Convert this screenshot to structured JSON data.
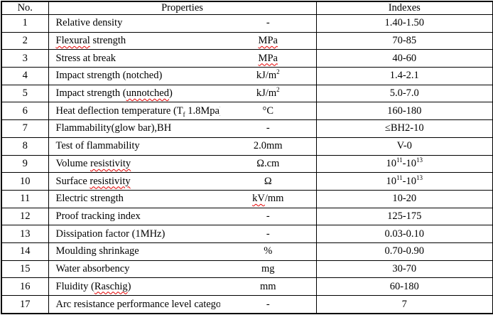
{
  "colors": {
    "border": "#000000",
    "text": "#000000",
    "spellcheck": "#e60000"
  },
  "table": {
    "headers": {
      "no": "No.",
      "properties": "Properties",
      "indexes": "Indexes"
    },
    "rows": [
      {
        "no": "1",
        "property": "Relative density",
        "unit": "-",
        "index": "1.40-1.50"
      },
      {
        "no": "2",
        "property": "{Flexural} strength",
        "unit": "{MPa}",
        "index": "70-85"
      },
      {
        "no": "3",
        "property": "Stress at break",
        "unit": "{MPa}",
        "index": "40-60"
      },
      {
        "no": "4",
        "property": "Impact strength (notched)",
        "unit": "kJ/m^2^",
        "index": "1.4-2.1"
      },
      {
        "no": "5",
        "property": "Impact strength ({unnotched})",
        "unit": "kJ/m^2^",
        "index": "5.0-7.0"
      },
      {
        "no": "6",
        "property": "Heat deflection temperature (T~{f}~ 1.8Mpa)",
        "unit": "°C",
        "index": "160-180"
      },
      {
        "no": "7",
        "property": "Flammability(glow bar),BH",
        "unit": "-",
        "index": "≤BH2-10"
      },
      {
        "no": "8",
        "property": "Test of flammability",
        "unit": "2.0mm",
        "index": "V-0"
      },
      {
        "no": "9",
        "property": "Volume {resistivity}",
        "unit": "Ω.cm",
        "index": "10^11^-10^13^"
      },
      {
        "no": "10",
        "property": "Surface {resistivity}",
        "unit": "Ω",
        "index": "10^11^-10^13^"
      },
      {
        "no": "11",
        "property": "Electric strength",
        "unit": "{kV}/mm",
        "index": "10-20"
      },
      {
        "no": "12",
        "property": "Proof tracking index",
        "unit": "-",
        "index": "125-175"
      },
      {
        "no": "13",
        "property": "Dissipation factor (1MHz)",
        "unit": "-",
        "index": "0.03-0.10"
      },
      {
        "no": "14",
        "property": "Moulding shrinkage",
        "unit": "%",
        "index": "0.70-0.90"
      },
      {
        "no": "15",
        "property": "Water absorbency",
        "unit": "mg",
        "index": "30-70"
      },
      {
        "no": "16",
        "property": "Fluidity ({Raschig})",
        "unit": "mm",
        "index": "60-180"
      },
      {
        "no": "17",
        "property": "Arc resistance performance level category",
        "unit": "-",
        "index": "7",
        "index_valign": "top"
      }
    ]
  }
}
